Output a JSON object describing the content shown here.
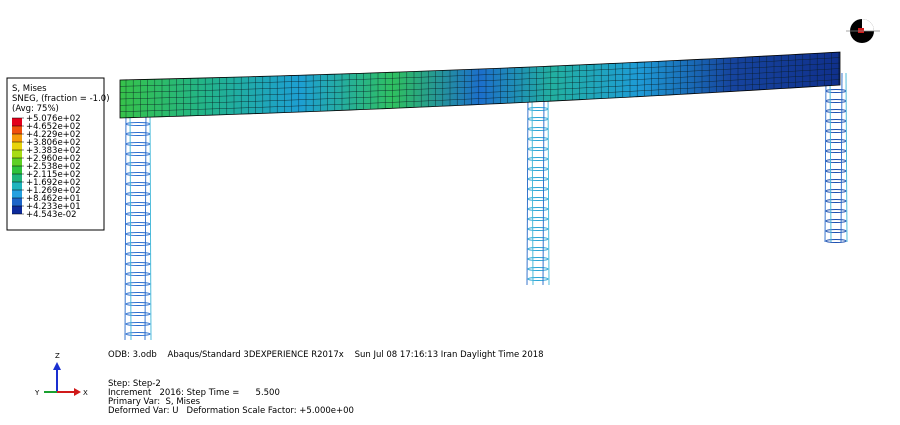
{
  "legend": {
    "title": "S, Mises",
    "subtitle": "SNEG, (fraction = -1.0)",
    "note": "(Avg: 75%)",
    "values": [
      "+5.076e+02",
      "+4.652e+02",
      "+4.229e+02",
      "+3.806e+02",
      "+3.383e+02",
      "+2.960e+02",
      "+2.538e+02",
      "+2.115e+02",
      "+1.692e+02",
      "+1.269e+02",
      "+8.462e+01",
      "+4.233e+01",
      "+4.543e-02"
    ],
    "colors": [
      "#e3001b",
      "#f0500c",
      "#f59a0a",
      "#e8d40c",
      "#a8dc16",
      "#5ed025",
      "#2fc23c",
      "#20b47a",
      "#1fb4bd",
      "#24a0e0",
      "#1c64c8",
      "#0d2a9a"
    ]
  },
  "info": {
    "odb": "ODB: 3.odb    Abaqus/Standard 3DEXPERIENCE R2017x    Sun Jul 08 17:16:13 Iran Daylight Time 2018",
    "step": "Step: Step-2",
    "increment": "Increment   2016: Step Time =      5.500",
    "primary": "Primary Var:  S, Mises",
    "deformed": "Deformed Var: U   Deformation Scale Factor: +5.000e+00"
  },
  "triad": {
    "z": "Z",
    "y": "Y",
    "x": "X"
  }
}
